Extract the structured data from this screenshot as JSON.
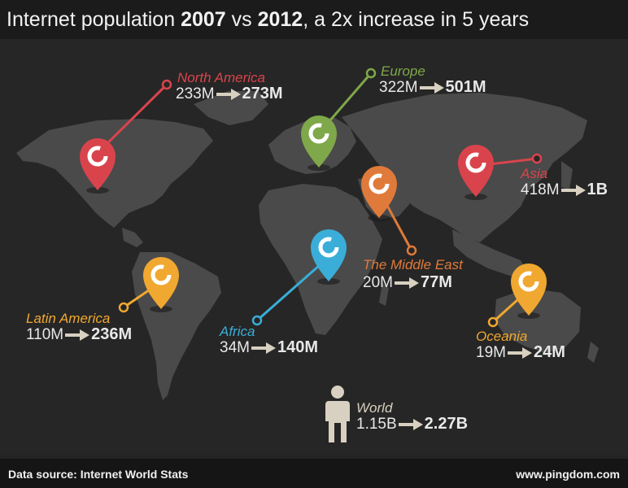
{
  "header": {
    "title_part1": "Internet population ",
    "title_year1": "2007",
    "title_part2": " vs ",
    "title_year2": "2012",
    "title_part3": ", a 2x increase in 5 years"
  },
  "regions": [
    {
      "id": "north-america",
      "name": "North America",
      "from": "233M",
      "to": "273M",
      "color": "#d9444c"
    },
    {
      "id": "europe",
      "name": "Europe",
      "from": "322M",
      "to": "501M",
      "color": "#7fa84a"
    },
    {
      "id": "asia",
      "name": "Asia",
      "from": "418M",
      "to": "1B",
      "color": "#d9444c"
    },
    {
      "id": "middle-east",
      "name": "The Middle East",
      "from": "20M",
      "to": "77M",
      "color": "#e07a3a"
    },
    {
      "id": "latin-america",
      "name": "Latin America",
      "from": "110M",
      "to": "236M",
      "color": "#f0a830"
    },
    {
      "id": "africa",
      "name": "Africa",
      "from": "34M",
      "to": "140M",
      "color": "#3aaed8"
    },
    {
      "id": "oceania",
      "name": "Oceania",
      "from": "19M",
      "to": "24M",
      "color": "#f0a830"
    }
  ],
  "world": {
    "name": "World",
    "from": "1.15B",
    "to": "2.27B",
    "color": "#d8d0c0"
  },
  "footer": {
    "source": "Data source: Internet World Stats",
    "site": "www.pingdom.com"
  },
  "colors": {
    "map_land": "#4a4a4a",
    "background": "#262626",
    "arrow": "#d8d0c0"
  }
}
